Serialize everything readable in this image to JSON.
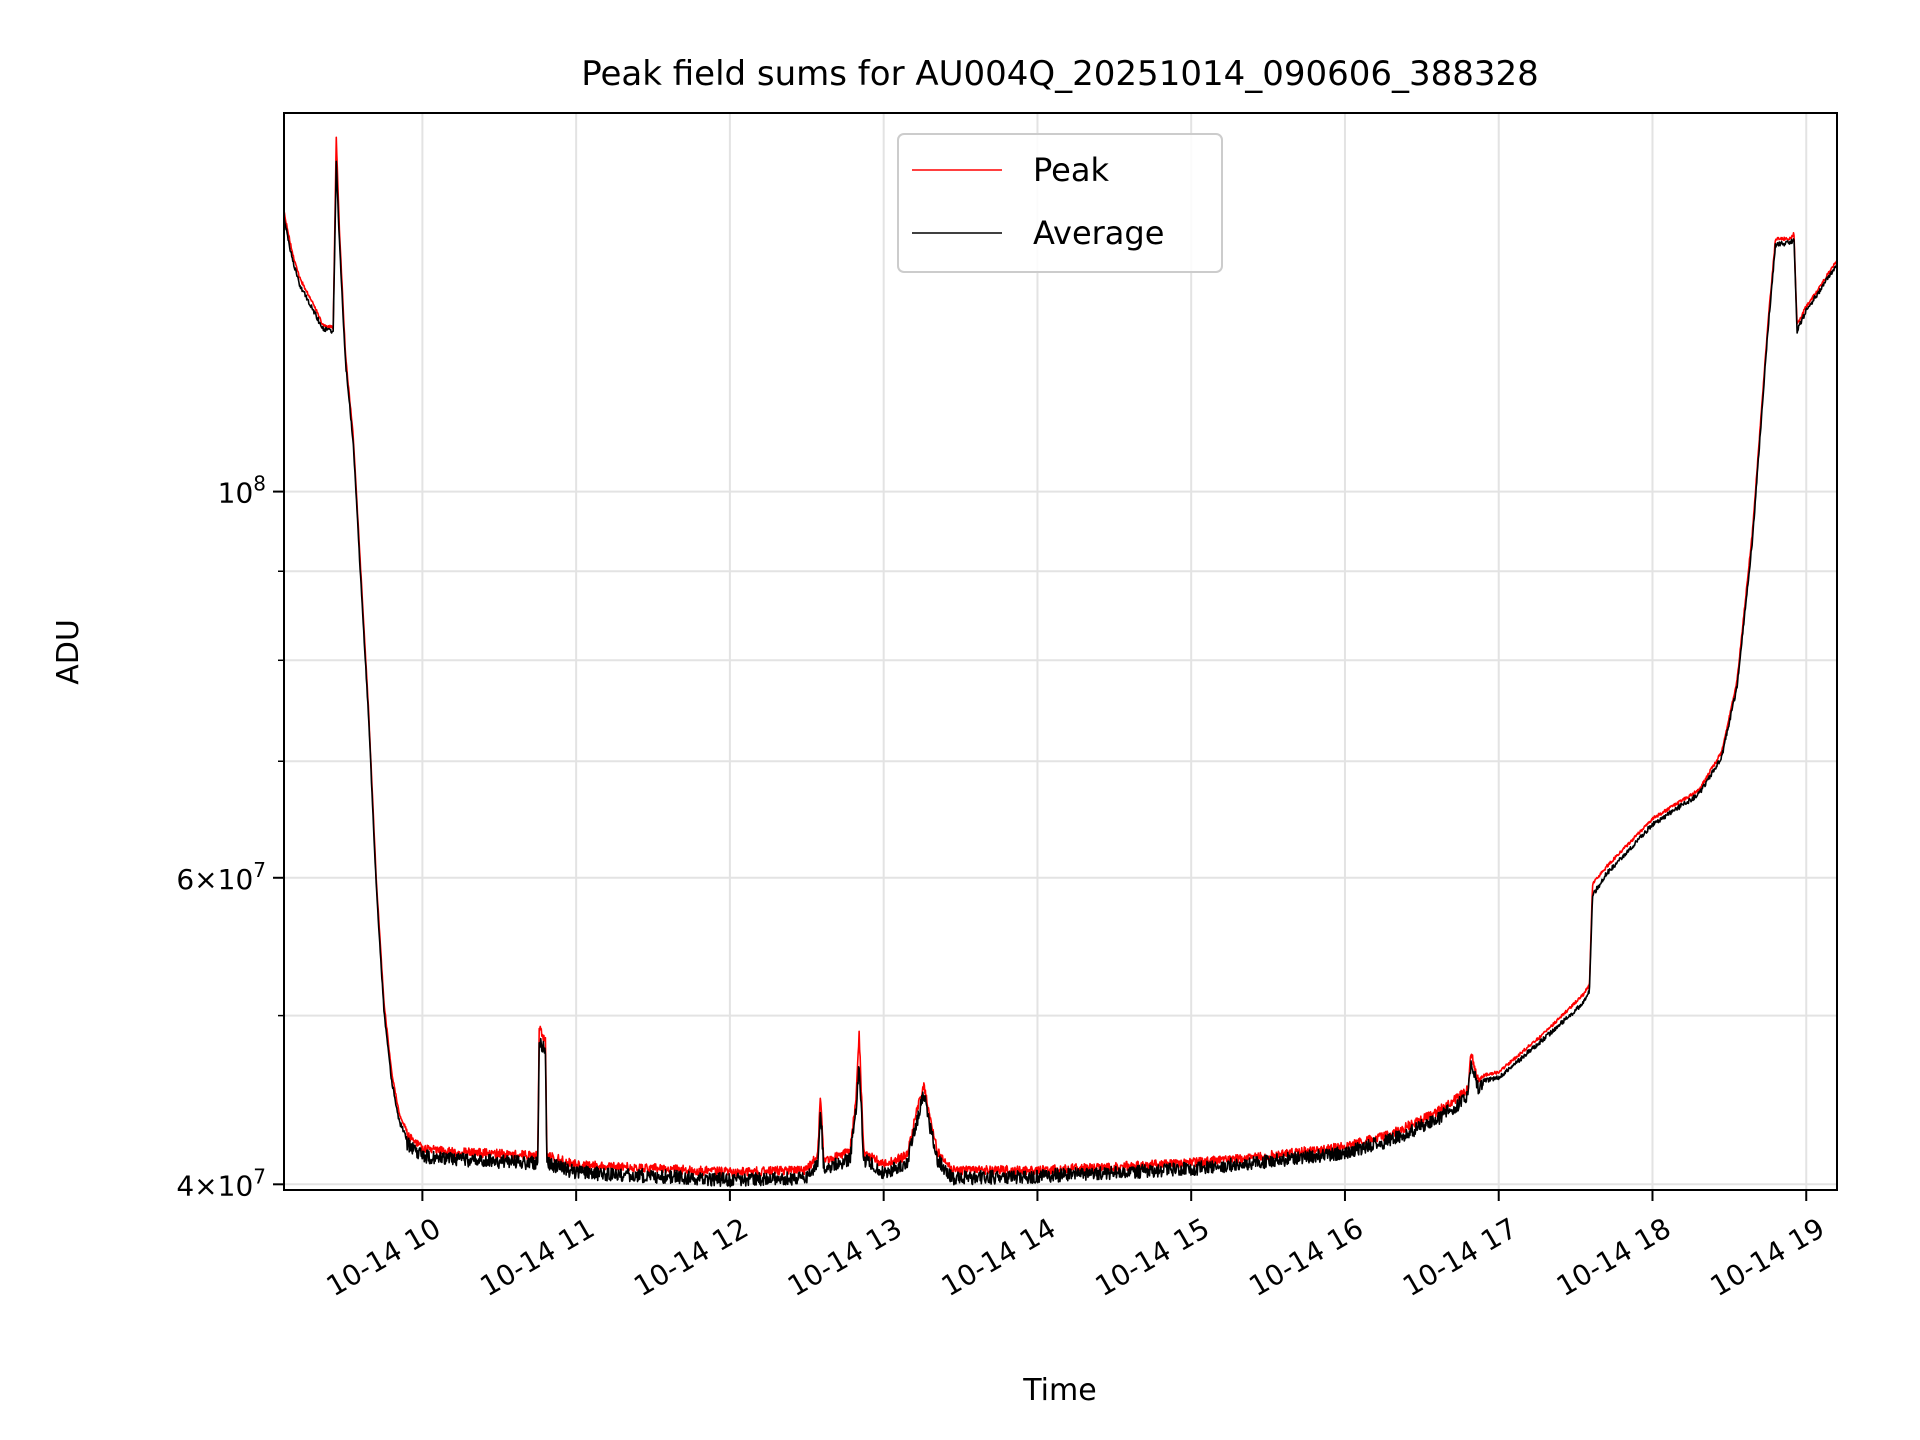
{
  "chart_data": {
    "type": "line",
    "title": "Peak field sums for AU004Q_20251014_090606_388328",
    "xlabel": "Time",
    "ylabel": "ADU",
    "yscale": "log",
    "xlim": [
      9.1,
      19.2
    ],
    "ylim": [
      39700000,
      165000000
    ],
    "grid": true,
    "legend_placement": "upper-center",
    "x_ticks": [
      {
        "value": 10,
        "label": "10-14 10"
      },
      {
        "value": 11,
        "label": "10-14 11"
      },
      {
        "value": 12,
        "label": "10-14 12"
      },
      {
        "value": 13,
        "label": "10-14 13"
      },
      {
        "value": 14,
        "label": "10-14 14"
      },
      {
        "value": 15,
        "label": "10-14 15"
      },
      {
        "value": 16,
        "label": "10-14 16"
      },
      {
        "value": 17,
        "label": "10-14 17"
      },
      {
        "value": 18,
        "label": "10-14 18"
      },
      {
        "value": 19,
        "label": "10-14 19"
      }
    ],
    "y_major_ticks": [
      {
        "value": 40000000,
        "base": "4×10",
        "exp": "7"
      },
      {
        "value": 60000000,
        "base": "6×10",
        "exp": "7"
      },
      {
        "value": 100000000,
        "base": "10",
        "exp": "8"
      }
    ],
    "y_minor_ticks": [
      50000000,
      70000000,
      80000000,
      90000000
    ],
    "series": [
      {
        "name": "Peak",
        "color": "#ff0000",
        "noise": 0.012,
        "points": [
          [
            9.1,
            145000000
          ],
          [
            9.15,
            138000000
          ],
          [
            9.2,
            133000000
          ],
          [
            9.3,
            128000000
          ],
          [
            9.35,
            125000000
          ],
          [
            9.42,
            124500000
          ],
          [
            9.44,
            160000000
          ],
          [
            9.46,
            142000000
          ],
          [
            9.5,
            120000000
          ],
          [
            9.55,
            108000000
          ],
          [
            9.6,
            90000000
          ],
          [
            9.65,
            75000000
          ],
          [
            9.7,
            60000000
          ],
          [
            9.75,
            51000000
          ],
          [
            9.8,
            46500000
          ],
          [
            9.85,
            44000000
          ],
          [
            9.9,
            43000000
          ],
          [
            10.0,
            42200000
          ],
          [
            10.2,
            42000000
          ],
          [
            10.5,
            41900000
          ],
          [
            10.75,
            41800000
          ],
          [
            10.76,
            49500000
          ],
          [
            10.8,
            48700000
          ],
          [
            10.81,
            41800000
          ],
          [
            11.0,
            41300000
          ],
          [
            11.5,
            41100000
          ],
          [
            12.0,
            40900000
          ],
          [
            12.5,
            41000000
          ],
          [
            12.57,
            41800000
          ],
          [
            12.59,
            45300000
          ],
          [
            12.61,
            41500000
          ],
          [
            12.78,
            42000000
          ],
          [
            12.82,
            45000000
          ],
          [
            12.84,
            49200000
          ],
          [
            12.87,
            42000000
          ],
          [
            13.0,
            41300000
          ],
          [
            13.15,
            41800000
          ],
          [
            13.22,
            44500000
          ],
          [
            13.26,
            45900000
          ],
          [
            13.3,
            44000000
          ],
          [
            13.35,
            42000000
          ],
          [
            13.45,
            41000000
          ],
          [
            14.0,
            41000000
          ],
          [
            14.5,
            41200000
          ],
          [
            15.0,
            41400000
          ],
          [
            15.5,
            41800000
          ],
          [
            16.0,
            42300000
          ],
          [
            16.3,
            43000000
          ],
          [
            16.6,
            44300000
          ],
          [
            16.8,
            45600000
          ],
          [
            16.82,
            48000000
          ],
          [
            16.86,
            46200000
          ],
          [
            17.0,
            46500000
          ],
          [
            17.3,
            49000000
          ],
          [
            17.55,
            51500000
          ],
          [
            17.59,
            52200000
          ],
          [
            17.61,
            59600000
          ],
          [
            17.7,
            61000000
          ],
          [
            18.0,
            65000000
          ],
          [
            18.3,
            67500000
          ],
          [
            18.45,
            71000000
          ],
          [
            18.55,
            78000000
          ],
          [
            18.65,
            95000000
          ],
          [
            18.75,
            125000000
          ],
          [
            18.8,
            140000000
          ],
          [
            18.9,
            140000000
          ],
          [
            18.92,
            141000000
          ],
          [
            18.94,
            125000000
          ],
          [
            19.0,
            128000000
          ],
          [
            19.08,
            131000000
          ],
          [
            19.15,
            134000000
          ],
          [
            19.2,
            136000000
          ]
        ]
      },
      {
        "name": "Average",
        "color": "#000000",
        "noise": 0.018,
        "points": [
          [
            9.1,
            144000000
          ],
          [
            9.15,
            137000000
          ],
          [
            9.2,
            132000000
          ],
          [
            9.3,
            127000000
          ],
          [
            9.35,
            124500000
          ],
          [
            9.42,
            124000000
          ],
          [
            9.44,
            155000000
          ],
          [
            9.46,
            140000000
          ],
          [
            9.5,
            119000000
          ],
          [
            9.55,
            107000000
          ],
          [
            9.6,
            89000000
          ],
          [
            9.65,
            74500000
          ],
          [
            9.7,
            59500000
          ],
          [
            9.75,
            50500000
          ],
          [
            9.8,
            46000000
          ],
          [
            9.85,
            43600000
          ],
          [
            9.9,
            42600000
          ],
          [
            10.0,
            41900000
          ],
          [
            10.2,
            41700000
          ],
          [
            10.5,
            41600000
          ],
          [
            10.75,
            41500000
          ],
          [
            10.76,
            48800000
          ],
          [
            10.8,
            48200000
          ],
          [
            10.81,
            41500000
          ],
          [
            11.0,
            41000000
          ],
          [
            11.5,
            40800000
          ],
          [
            12.0,
            40600000
          ],
          [
            12.5,
            40700000
          ],
          [
            12.57,
            41500000
          ],
          [
            12.59,
            44600000
          ],
          [
            12.61,
            41200000
          ],
          [
            12.78,
            41700000
          ],
          [
            12.82,
            44400000
          ],
          [
            12.84,
            47500000
          ],
          [
            12.87,
            41700000
          ],
          [
            13.0,
            41000000
          ],
          [
            13.15,
            41500000
          ],
          [
            13.22,
            44000000
          ],
          [
            13.26,
            45600000
          ],
          [
            13.3,
            43600000
          ],
          [
            13.35,
            41700000
          ],
          [
            13.45,
            40700000
          ],
          [
            14.0,
            40800000
          ],
          [
            14.5,
            41000000
          ],
          [
            15.0,
            41200000
          ],
          [
            15.5,
            41600000
          ],
          [
            16.0,
            42100000
          ],
          [
            16.3,
            42800000
          ],
          [
            16.6,
            44000000
          ],
          [
            16.8,
            45300000
          ],
          [
            16.82,
            47600000
          ],
          [
            16.86,
            45900000
          ],
          [
            17.0,
            46200000
          ],
          [
            17.3,
            48700000
          ],
          [
            17.55,
            51000000
          ],
          [
            17.59,
            51800000
          ],
          [
            17.61,
            58800000
          ],
          [
            17.7,
            60500000
          ],
          [
            18.0,
            64600000
          ],
          [
            18.3,
            67200000
          ],
          [
            18.45,
            70600000
          ],
          [
            18.55,
            77500000
          ],
          [
            18.65,
            94000000
          ],
          [
            18.75,
            124000000
          ],
          [
            18.8,
            139000000
          ],
          [
            18.9,
            139500000
          ],
          [
            18.92,
            140000000
          ],
          [
            18.94,
            124000000
          ],
          [
            19.0,
            127500000
          ],
          [
            19.08,
            130500000
          ],
          [
            19.15,
            133500000
          ],
          [
            19.2,
            135500000
          ]
        ]
      }
    ]
  }
}
